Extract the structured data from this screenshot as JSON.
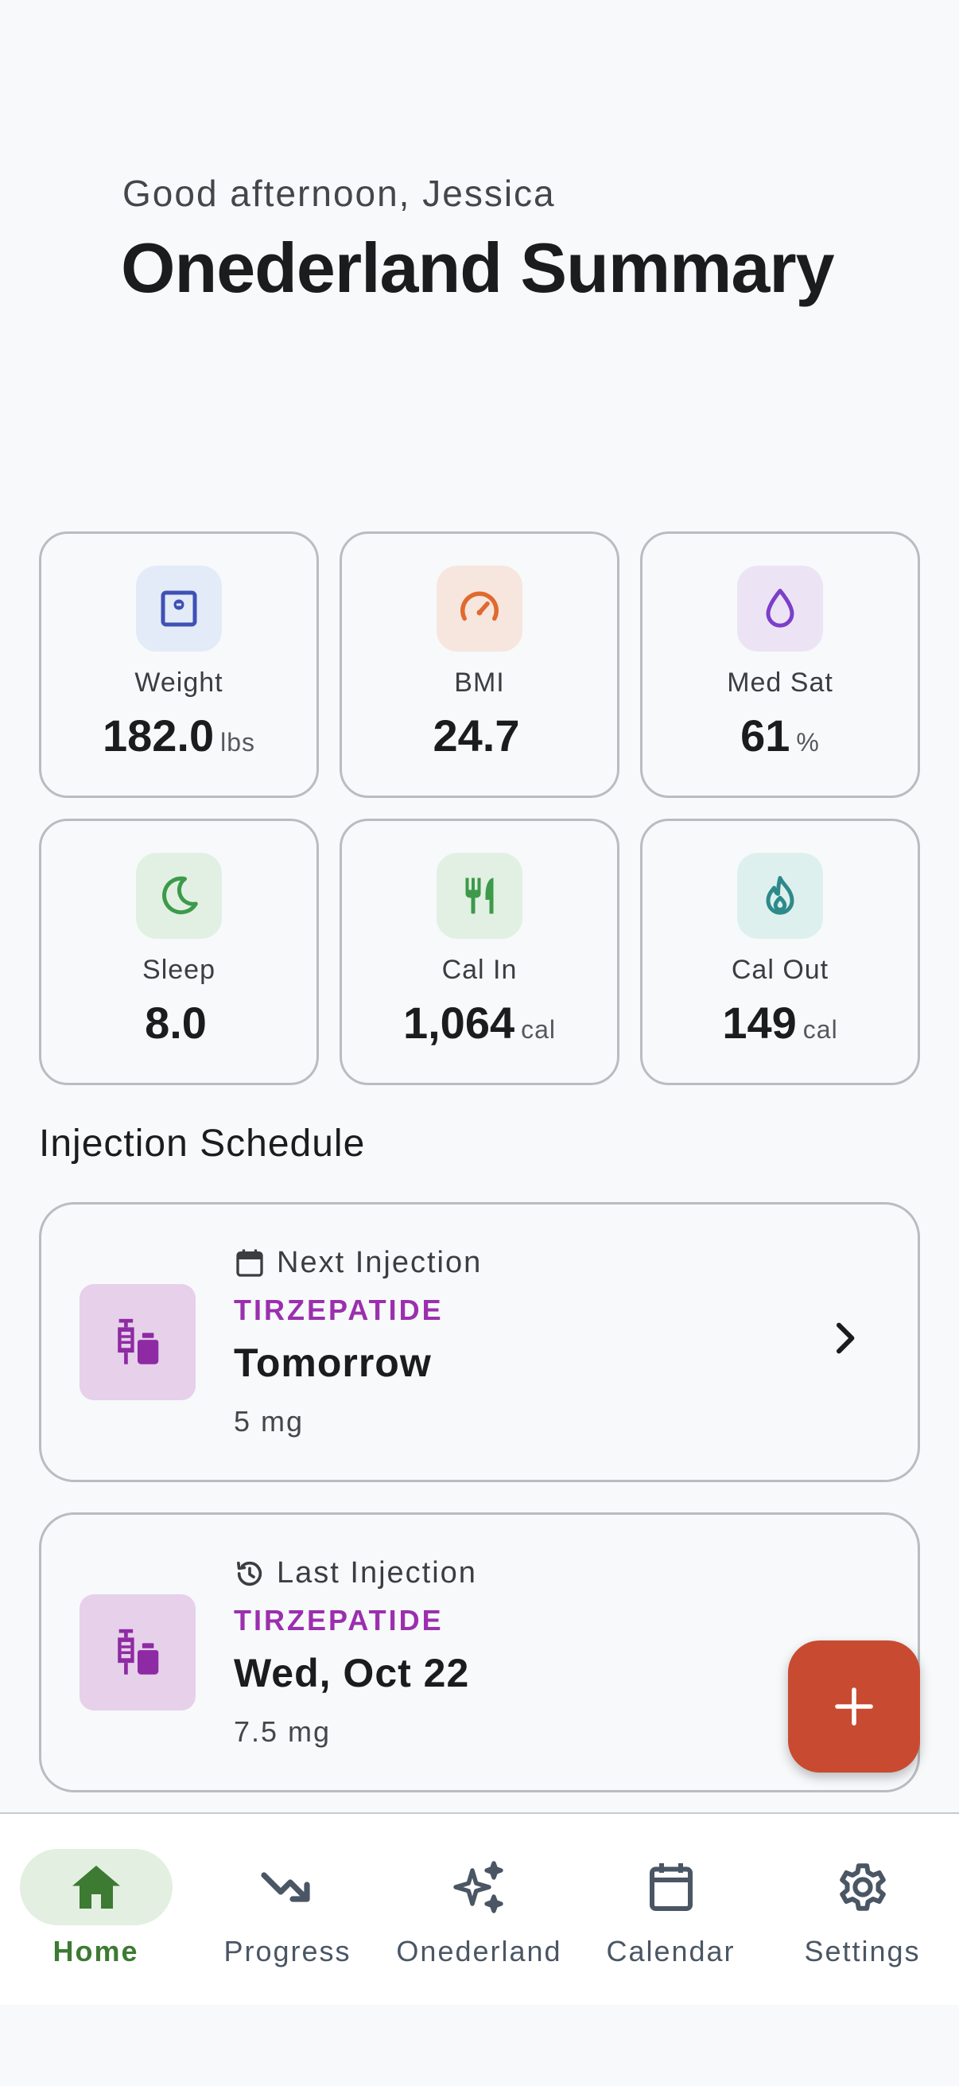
{
  "header": {
    "greeting": "Good afternoon, Jessica",
    "title": "Onederland Summary"
  },
  "metrics": [
    {
      "label": "Weight",
      "value": "182.0",
      "unit": "lbs",
      "icon": "scale-icon",
      "color": "#3f51b5",
      "bg": "#e3ebf8"
    },
    {
      "label": "BMI",
      "value": "24.7",
      "unit": "",
      "icon": "speedometer-icon",
      "color": "#e06a2e",
      "bg": "#f7e6de"
    },
    {
      "label": "Med Sat",
      "value": "61",
      "unit": "%",
      "icon": "droplet-icon",
      "color": "#7b3fc9",
      "bg": "#ece4f5"
    },
    {
      "label": "Sleep",
      "value": "8.0",
      "unit": "",
      "icon": "moon-icon",
      "color": "#3d9a4a",
      "bg": "#e1f0e3"
    },
    {
      "label": "Cal In",
      "value": "1,064",
      "unit": "cal",
      "icon": "utensils-icon",
      "color": "#3d9a4a",
      "bg": "#e1f0e3"
    },
    {
      "label": "Cal Out",
      "value": "149",
      "unit": "cal",
      "icon": "flame-icon",
      "color": "#2d8a8a",
      "bg": "#def0ee"
    }
  ],
  "injection_schedule": {
    "title": "Injection Schedule",
    "next": {
      "heading": "Next Injection",
      "drug": "TIRZEPATIDE",
      "date": "Tomorrow",
      "dose": "5 mg"
    },
    "last": {
      "heading": "Last Injection",
      "drug": "TIRZEPATIDE",
      "date": "Wed, Oct 22",
      "dose": "7.5 mg"
    }
  },
  "fab": {
    "icon": "plus-icon"
  },
  "nav": {
    "items": [
      {
        "label": "Home",
        "icon": "home-icon",
        "active": true
      },
      {
        "label": "Progress",
        "icon": "trending-down-icon",
        "active": false
      },
      {
        "label": "Onederland",
        "icon": "sparkles-icon",
        "active": false
      },
      {
        "label": "Calendar",
        "icon": "calendar-icon",
        "active": false
      },
      {
        "label": "Settings",
        "icon": "gear-icon",
        "active": false
      }
    ]
  },
  "colors": {
    "accent_purple": "#9b2fae",
    "fab": "#c84b31",
    "nav_active": "#3d7a32"
  }
}
